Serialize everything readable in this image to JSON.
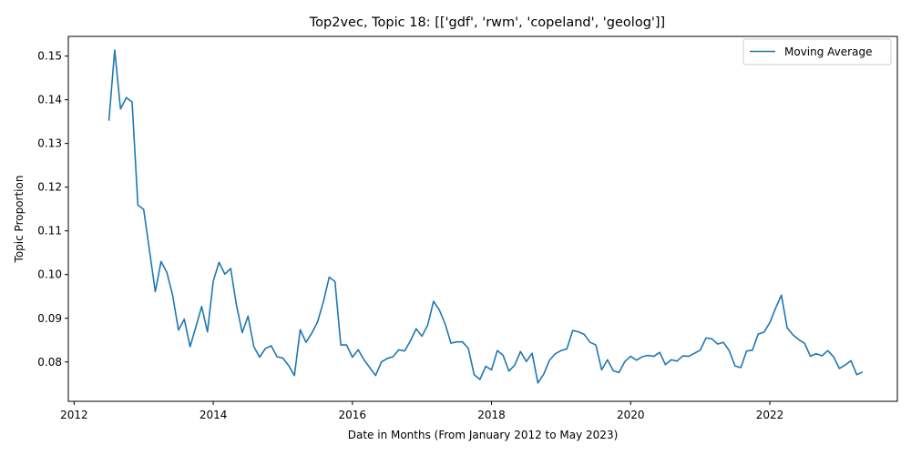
{
  "chart_data": {
    "type": "line",
    "title": "Top2vec, Topic 18: [['gdf', 'rwm', 'copeland', 'geolog']]",
    "xlabel": "Date in Months (From January 2012 to May 2023)",
    "ylabel": "Topic Proportion",
    "x_ticks": [
      "2012",
      "2014",
      "2016",
      "2018",
      "2020",
      "2022"
    ],
    "y_ticks": [
      "0.08",
      "0.09",
      "0.10",
      "0.11",
      "0.12",
      "0.13",
      "0.14",
      "0.15"
    ],
    "xlim": [
      "2011-12",
      "2023-11"
    ],
    "ylim": [
      0.071,
      0.1545
    ],
    "grid": false,
    "legend_position": "top-right",
    "color": "#1f77b4",
    "series": [
      {
        "name": "Moving Average",
        "x": [
          "2012-07",
          "2012-08",
          "2012-09",
          "2012-10",
          "2012-11",
          "2012-12",
          "2013-01",
          "2013-02",
          "2013-03",
          "2013-04",
          "2013-05",
          "2013-06",
          "2013-07",
          "2013-08",
          "2013-09",
          "2013-10",
          "2013-11",
          "2013-12",
          "2014-01",
          "2014-02",
          "2014-03",
          "2014-04",
          "2014-05",
          "2014-06",
          "2014-07",
          "2014-08",
          "2014-09",
          "2014-10",
          "2014-11",
          "2014-12",
          "2015-01",
          "2015-02",
          "2015-03",
          "2015-04",
          "2015-05",
          "2015-06",
          "2015-07",
          "2015-08",
          "2015-09",
          "2015-10",
          "2015-11",
          "2015-12",
          "2016-01",
          "2016-02",
          "2016-03",
          "2016-04",
          "2016-05",
          "2016-06",
          "2016-07",
          "2016-08",
          "2016-09",
          "2016-10",
          "2016-11",
          "2016-12",
          "2017-01",
          "2017-02",
          "2017-03",
          "2017-04",
          "2017-05",
          "2017-06",
          "2017-07",
          "2017-08",
          "2017-09",
          "2017-10",
          "2017-11",
          "2017-12",
          "2018-01",
          "2018-02",
          "2018-03",
          "2018-04",
          "2018-05",
          "2018-06",
          "2018-07",
          "2018-08",
          "2018-09",
          "2018-10",
          "2018-11",
          "2018-12",
          "2019-01",
          "2019-02",
          "2019-03",
          "2019-04",
          "2019-05",
          "2019-06",
          "2019-07",
          "2019-08",
          "2019-09",
          "2019-10",
          "2019-11",
          "2019-12",
          "2020-01",
          "2020-02",
          "2020-03",
          "2020-04",
          "2020-05",
          "2020-06",
          "2020-07",
          "2020-08",
          "2020-09",
          "2020-10",
          "2020-11",
          "2020-12",
          "2021-01",
          "2021-02",
          "2021-03",
          "2021-04",
          "2021-05",
          "2021-06",
          "2021-07",
          "2021-08",
          "2021-09",
          "2021-10",
          "2021-11",
          "2021-12",
          "2022-01",
          "2022-02",
          "2022-03",
          "2022-04",
          "2022-05",
          "2022-06",
          "2022-07",
          "2022-08",
          "2022-09",
          "2022-10",
          "2022-11",
          "2022-12",
          "2023-01",
          "2023-02",
          "2023-03",
          "2023-04",
          "2023-05"
        ],
        "values": [
          0.1352,
          0.1514,
          0.1379,
          0.1405,
          0.1395,
          0.1159,
          0.1149,
          0.1055,
          0.0961,
          0.103,
          0.1005,
          0.0952,
          0.0873,
          0.0898,
          0.0835,
          0.088,
          0.0927,
          0.0869,
          0.0985,
          0.1028,
          0.1001,
          0.1014,
          0.093,
          0.0867,
          0.0905,
          0.0835,
          0.0811,
          0.0831,
          0.0837,
          0.0812,
          0.0809,
          0.0792,
          0.0769,
          0.0874,
          0.0845,
          0.0866,
          0.0892,
          0.0938,
          0.0994,
          0.0984,
          0.0839,
          0.0839,
          0.0811,
          0.0828,
          0.0805,
          0.0787,
          0.0769,
          0.08,
          0.0808,
          0.0812,
          0.0828,
          0.0825,
          0.0848,
          0.0876,
          0.0859,
          0.0885,
          0.0939,
          0.0919,
          0.0887,
          0.0843,
          0.0846,
          0.0846,
          0.0831,
          0.0771,
          0.076,
          0.079,
          0.0782,
          0.0826,
          0.0815,
          0.0779,
          0.0793,
          0.0824,
          0.0801,
          0.082,
          0.0752,
          0.0772,
          0.0804,
          0.0819,
          0.0826,
          0.083,
          0.0872,
          0.0869,
          0.0863,
          0.0845,
          0.0839,
          0.0782,
          0.0805,
          0.078,
          0.0776,
          0.0801,
          0.0813,
          0.0804,
          0.0812,
          0.0815,
          0.0813,
          0.0822,
          0.0794,
          0.0805,
          0.0802,
          0.0814,
          0.0813,
          0.082,
          0.0827,
          0.0855,
          0.0853,
          0.0841,
          0.0845,
          0.0826,
          0.0791,
          0.0787,
          0.0825,
          0.0827,
          0.0864,
          0.0868,
          0.089,
          0.0923,
          0.0953,
          0.0878,
          0.0862,
          0.0851,
          0.0843,
          0.0813,
          0.0819,
          0.0814,
          0.0826,
          0.0812,
          0.0785,
          0.0793,
          0.0803,
          0.0771,
          0.0777
        ]
      }
    ]
  }
}
